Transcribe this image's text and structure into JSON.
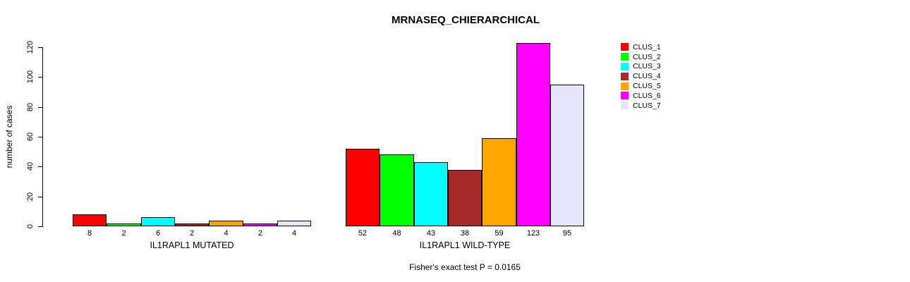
{
  "title": "MRNASEQ_CHIERARCHICAL",
  "footer": "Fisher's exact test P = 0.0165",
  "chart_data": {
    "type": "bar",
    "title": "MRNASEQ_CHIERARCHICAL",
    "ylabel": "number of cases",
    "xlabel": "",
    "ylim": [
      0,
      120
    ],
    "yticks": [
      0,
      20,
      40,
      60,
      80,
      100,
      120
    ],
    "grid": false,
    "legend_position": "right",
    "categories": [
      "CLUS_1",
      "CLUS_2",
      "CLUS_3",
      "CLUS_4",
      "CLUS_5",
      "CLUS_6",
      "CLUS_7"
    ],
    "series_colors": [
      "#ff0000",
      "#00ff00",
      "#00ffff",
      "#a52a2a",
      "#ffa500",
      "#ff00ff",
      "#e6e6fa"
    ],
    "groups": [
      {
        "label": "IL1RAPL1 MUTATED",
        "values": [
          8,
          2,
          6,
          2,
          4,
          2,
          4
        ]
      },
      {
        "label": "IL1RAPL1 WILD-TYPE",
        "values": [
          52,
          48,
          43,
          38,
          59,
          123,
          95
        ]
      }
    ],
    "bar_value_labels_shown": true,
    "annotation": "Fisher's exact test P = 0.0165"
  }
}
